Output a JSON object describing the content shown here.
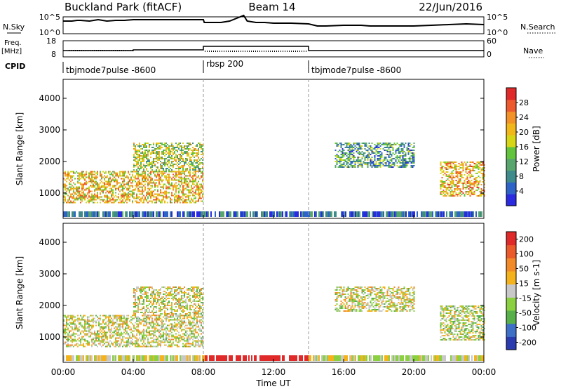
{
  "header": {
    "site": "Buckland Park (fitACF)",
    "beam": "Beam 14",
    "date": "22/Jun/2016"
  },
  "noise_panel": {
    "left_label": "N.Sky",
    "left_ticks": [
      "10^5",
      "10^0"
    ],
    "right_ticks": [
      "10^5",
      "10^0"
    ],
    "right_label": "N.Search"
  },
  "freq_panel": {
    "left_label_line1": "Freq.",
    "left_label_line2": "[MHz]",
    "left_ticks": [
      "18",
      "8"
    ],
    "right_ticks": [
      "60",
      "0"
    ],
    "right_label": "Nave"
  },
  "cpid_panel": {
    "label": "CPID",
    "segments": [
      "tbjmode7pulse -8600",
      "rbsp 200",
      "tbjmode7pulse -8600"
    ]
  },
  "chart_data": [
    {
      "type": "heatmap",
      "title": "",
      "xlabel": "",
      "ylabel": "Slant Range [km]",
      "ylim": [
        200,
        4600
      ],
      "xlim_hours": [
        0,
        24
      ],
      "yticks": [
        "1000",
        "2000",
        "3000",
        "4000"
      ],
      "colorbar": {
        "label": "Power [dB]",
        "ticks": [
          "4",
          "8",
          "12",
          "16",
          "20",
          "24",
          "28"
        ],
        "colors": [
          "#2a2ae0",
          "#2e64c8",
          "#3f8a8a",
          "#58a56e",
          "#62c43c",
          "#d6d617",
          "#f0b81a",
          "#f29227",
          "#ec5a2e",
          "#e02a2a"
        ]
      },
      "echo_regions": [
        {
          "t0": 0.0,
          "t1": 8.0,
          "r0": 700,
          "r1": 1700,
          "level": 0.65
        },
        {
          "t0": 4.0,
          "t1": 8.0,
          "r0": 1700,
          "r1": 2600,
          "level": 0.5
        },
        {
          "t0": 15.5,
          "t1": 20.0,
          "r0": 1800,
          "r1": 2600,
          "level": 0.3
        },
        {
          "t0": 21.5,
          "t1": 24.0,
          "r0": 900,
          "r1": 2000,
          "level": 0.7
        }
      ]
    },
    {
      "type": "heatmap",
      "title": "",
      "xlabel": "Time UT",
      "ylabel": "Slant Range [km]",
      "ylim": [
        200,
        4600
      ],
      "xlim_hours": [
        0,
        24
      ],
      "xticks": [
        "00:00",
        "04:00",
        "08:00",
        "12:00",
        "16:00",
        "20:00",
        "00:00"
      ],
      "yticks": [
        "1000",
        "2000",
        "3000",
        "4000"
      ],
      "colorbar": {
        "label": "Velocity [m s-1]",
        "ticks": [
          "200",
          "100",
          "50",
          "15",
          "-15",
          "-50",
          "-100",
          "-200"
        ],
        "colors": [
          "#2a3bb0",
          "#3f70c8",
          "#58b04a",
          "#8ad040",
          "#c8c8c8",
          "#f4b21c",
          "#f28a2a",
          "#ea5a2a",
          "#e02a2a"
        ]
      },
      "echo_regions": [
        {
          "t0": 0.0,
          "t1": 8.0,
          "r0": 700,
          "r1": 1700,
          "level": 0.5
        },
        {
          "t0": 4.0,
          "t1": 8.0,
          "r0": 1700,
          "r1": 2600,
          "level": 0.5
        },
        {
          "t0": 15.5,
          "t1": 20.0,
          "r0": 1800,
          "r1": 2600,
          "level": 0.5
        },
        {
          "t0": 21.5,
          "t1": 24.0,
          "r0": 900,
          "r1": 2000,
          "level": 0.45
        }
      ]
    }
  ]
}
